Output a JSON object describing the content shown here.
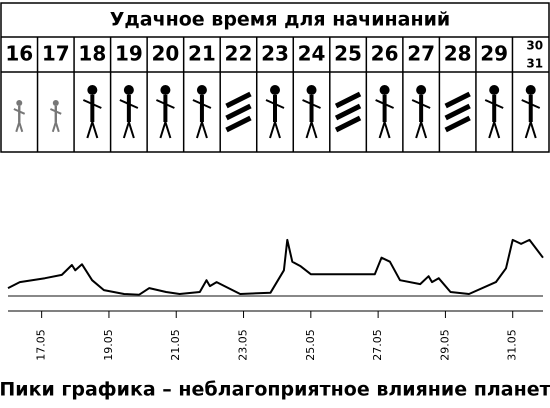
{
  "calendar": {
    "title": "Удачное время для начинаний",
    "days": [
      "16",
      "17",
      "18",
      "19",
      "20",
      "21",
      "22",
      "23",
      "24",
      "25",
      "26",
      "27",
      "28",
      "29",
      "30",
      "31"
    ]
  },
  "chart_data": {
    "type": "line",
    "caption": "Пики графика – неблагоприятное влияние планет",
    "x": [
      16.0,
      16.35,
      17.1,
      17.6,
      17.9,
      18.0,
      18.2,
      18.5,
      18.85,
      19.45,
      19.9,
      20.2,
      20.7,
      21.1,
      21.7,
      21.9,
      22.0,
      22.2,
      22.9,
      23.8,
      24.2,
      24.3,
      24.45,
      24.7,
      25.0,
      26.9,
      27.1,
      27.35,
      27.65,
      28.25,
      28.5,
      28.6,
      28.8,
      29.15,
      29.7,
      30.5,
      30.8,
      31.0,
      31.25,
      31.5,
      31.9
    ],
    "values": [
      12,
      21,
      27,
      32,
      47,
      39,
      48,
      24,
      9,
      3,
      2,
      12,
      6,
      3,
      6,
      24,
      15,
      21,
      3,
      5,
      39,
      85,
      52,
      45,
      33,
      33,
      58,
      52,
      24,
      18,
      30,
      21,
      27,
      6,
      3,
      21,
      42,
      85,
      79,
      85,
      58
    ],
    "color": "#000000",
    "xlim": [
      16.0,
      31.9
    ],
    "ylim": [
      0,
      100
    ],
    "xticks": [
      {
        "value": 17,
        "label": "17.05"
      },
      {
        "value": 19,
        "label": "19.05"
      },
      {
        "value": 21,
        "label": "21.05"
      },
      {
        "value": 23,
        "label": "23.05"
      },
      {
        "value": 25,
        "label": "25.05"
      },
      {
        "value": 27,
        "label": "27.05"
      },
      {
        "value": 29,
        "label": "29.05"
      },
      {
        "value": 31,
        "label": "31.05"
      }
    ]
  }
}
